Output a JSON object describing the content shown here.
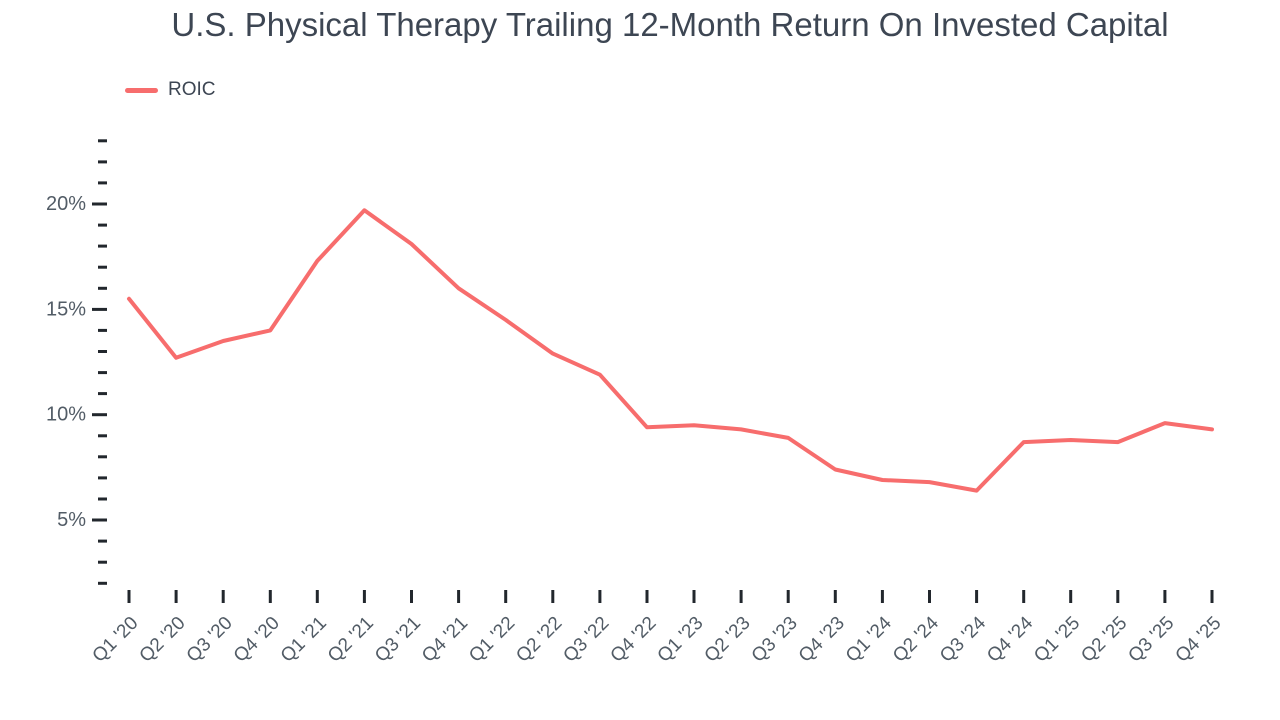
{
  "header": {
    "title": "U.S. Physical Therapy Trailing 12-Month Return On Invested Capital"
  },
  "legend": {
    "items": [
      {
        "label": "ROIC",
        "color": "#f76d6d"
      }
    ]
  },
  "colors": {
    "background": "#ffffff",
    "line": "#f76d6d",
    "title_text": "#3d4653",
    "axis_label": "#525c66",
    "tick": "#22272d"
  },
  "chart_data": {
    "type": "line",
    "title": "U.S. Physical Therapy Trailing 12-Month Return On Invested Capital",
    "categories": [
      "Q1 '20",
      "Q2 '20",
      "Q3 '20",
      "Q4 '20",
      "Q1 '21",
      "Q2 '21",
      "Q3 '21",
      "Q4 '21",
      "Q1 '22",
      "Q2 '22",
      "Q3 '22",
      "Q4 '22",
      "Q1 '23",
      "Q2 '23",
      "Q3 '23",
      "Q4 '23",
      "Q1 '24",
      "Q2 '24",
      "Q3 '24",
      "Q4 '24",
      "Q1 '25",
      "Q2 '25",
      "Q3 '25",
      "Q4 '25"
    ],
    "series": [
      {
        "name": "ROIC",
        "color": "#f76d6d",
        "values": [
          15.5,
          12.7,
          13.5,
          14.0,
          17.3,
          19.7,
          18.1,
          16.0,
          14.5,
          12.9,
          11.9,
          9.4,
          9.5,
          9.3,
          8.9,
          7.4,
          6.9,
          6.8,
          6.4,
          8.7,
          8.8,
          8.7,
          9.6,
          9.3
        ]
      }
    ],
    "xlabel": "",
    "ylabel": "",
    "y_axis": {
      "unit": "%",
      "min": 2,
      "max": 23,
      "minor_tick_step": 1,
      "major_ticks": [
        20,
        15,
        10,
        5
      ],
      "labels": [
        "20%",
        "15%",
        "10%",
        "5%"
      ]
    },
    "legend_position": "top-left",
    "grid": false
  }
}
